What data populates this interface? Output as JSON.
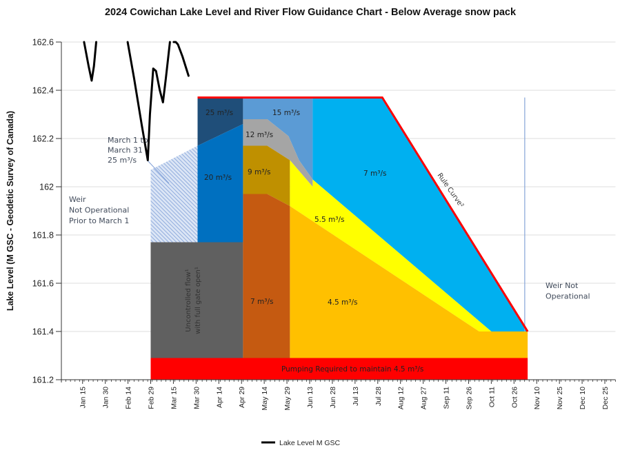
{
  "chart_data": {
    "type": "area",
    "title": "2024 Cowichan Lake Level and River Flow Guidance Chart - Below Average snow pack",
    "xlabel": "",
    "ylabel": "Lake Level (M GSC - Geodetic Survey of Canada)",
    "ylim": [
      161.2,
      162.6
    ],
    "yticks": [
      "162.6",
      "162.4",
      "162.2",
      "162",
      "161.8",
      "161.6",
      "161.4",
      "161.2"
    ],
    "ytick_values": [
      162.6,
      162.4,
      162.2,
      162.0,
      161.8,
      161.6,
      161.4,
      161.2
    ],
    "xlim_days": [
      0,
      366
    ],
    "x_unit": "day of year 2024 (Jan 1 = 0)",
    "xticks": [
      {
        "label": "Jan 15",
        "day": 14
      },
      {
        "label": "Jan 30",
        "day": 29
      },
      {
        "label": "Feb 14",
        "day": 44
      },
      {
        "label": "Feb 29",
        "day": 59
      },
      {
        "label": "Mar 15",
        "day": 74
      },
      {
        "label": "Mar 30",
        "day": 89
      },
      {
        "label": "Apr 14",
        "day": 104
      },
      {
        "label": "Apr 29",
        "day": 119
      },
      {
        "label": "May 14",
        "day": 134
      },
      {
        "label": "May 29",
        "day": 149
      },
      {
        "label": "Jun 13",
        "day": 164
      },
      {
        "label": "Jun 28",
        "day": 179
      },
      {
        "label": "Jul 13",
        "day": 194
      },
      {
        "label": "Jul 28",
        "day": 209
      },
      {
        "label": "Aug 12",
        "day": 224
      },
      {
        "label": "Aug 27",
        "day": 239
      },
      {
        "label": "Sep 11",
        "day": 254
      },
      {
        "label": "Sep 26",
        "day": 269
      },
      {
        "label": "Oct 11",
        "day": 284
      },
      {
        "label": "Oct 26",
        "day": 299
      },
      {
        "label": "Nov 10",
        "day": 314
      },
      {
        "label": "Nov 25",
        "day": 329
      },
      {
        "label": "Dec 10",
        "day": 344
      },
      {
        "label": "Dec 25",
        "day": 359
      }
    ],
    "grid": true,
    "legend": {
      "position": "bottom-center",
      "entries": [
        {
          "label": "Lake Level M GSC",
          "color": "#000000"
        }
      ]
    },
    "series": [
      {
        "name": "Lake Level M GSC",
        "type": "line",
        "color": "#000000",
        "segments": [
          [
            [
              15,
              162.6
            ],
            [
              18,
              162.5
            ],
            [
              20,
              162.44
            ],
            [
              21.5,
              162.5
            ],
            [
              23,
              162.6
            ]
          ],
          [
            [
              43.8,
              162.6
            ],
            [
              48,
              162.45
            ],
            [
              53,
              162.26
            ],
            [
              57.1,
              162.11
            ],
            [
              58.5,
              162.3
            ],
            [
              60.7,
              162.49
            ],
            [
              62.5,
              162.48
            ],
            [
              65,
              162.4
            ],
            [
              67.1,
              162.35
            ],
            [
              69,
              162.45
            ],
            [
              71.7,
              162.6
            ]
          ],
          [
            [
              74.2,
              162.6
            ],
            [
              75.6,
              162.6
            ],
            [
              77,
              162.59
            ],
            [
              80,
              162.54
            ],
            [
              82,
              162.5
            ],
            [
              84,
              162.46
            ]
          ]
        ]
      }
    ],
    "zones": [
      {
        "name": "pumping",
        "label": "Pumping Required to maintain 4.5 m³/s",
        "color": "#ff0000",
        "polygon": [
          [
            59,
            161.29
          ],
          [
            308,
            161.29
          ],
          [
            308,
            161.2
          ],
          [
            59,
            161.2
          ]
        ]
      },
      {
        "name": "uncontrolled",
        "label": "Uncontrolled flow with full gate open",
        "color": "#606060",
        "polygon": [
          [
            59,
            161.77
          ],
          [
            120,
            161.77
          ],
          [
            120,
            161.29
          ],
          [
            59,
            161.29
          ]
        ]
      },
      {
        "name": "march-hatch",
        "label": "March 1 to March 31 25 m³/s",
        "color": "#8fa9dc",
        "polygon": [
          [
            59,
            162.07
          ],
          [
            90,
            162.17
          ],
          [
            90,
            161.77
          ],
          [
            59,
            161.77
          ]
        ]
      },
      {
        "name": "flow-25",
        "label": "25 m³/s",
        "color": "#1f4e79",
        "polygon": [
          [
            90,
            162.37
          ],
          [
            120,
            162.37
          ],
          [
            120,
            162.26
          ],
          [
            90,
            162.17
          ]
        ]
      },
      {
        "name": "flow-20",
        "label": "20 m³/s",
        "color": "#0070c0",
        "polygon": [
          [
            90,
            162.17
          ],
          [
            120,
            162.26
          ],
          [
            120,
            161.77
          ],
          [
            90,
            161.77
          ]
        ]
      },
      {
        "name": "flow-15",
        "label": "15 m³/s",
        "color": "#5b9bd5",
        "polygon": [
          [
            120,
            162.37
          ],
          [
            166,
            162.37
          ],
          [
            166,
            162.03
          ],
          [
            157,
            162.11
          ],
          [
            150,
            162.21
          ],
          [
            136,
            162.28
          ],
          [
            120,
            162.28
          ]
        ]
      },
      {
        "name": "flow-12",
        "label": "12 m³/s",
        "color": "#a5a5a5",
        "polygon": [
          [
            120,
            162.28
          ],
          [
            136,
            162.28
          ],
          [
            150,
            162.21
          ],
          [
            157,
            162.11
          ],
          [
            166,
            162.03
          ],
          [
            166,
            162.0
          ],
          [
            151,
            162.11
          ],
          [
            136,
            162.17
          ],
          [
            120,
            162.17
          ]
        ]
      },
      {
        "name": "flow-9",
        "label": "9 m³/s",
        "color": "#bf9000",
        "polygon": [
          [
            120,
            162.17
          ],
          [
            136,
            162.17
          ],
          [
            151,
            162.11
          ],
          [
            151,
            161.92
          ],
          [
            136,
            161.97
          ],
          [
            120,
            161.97
          ]
        ]
      },
      {
        "name": "flow-7-spring",
        "label": "7 m³/s",
        "color": "#c55a11",
        "polygon": [
          [
            120,
            161.97
          ],
          [
            136,
            161.97
          ],
          [
            151,
            161.92
          ],
          [
            151,
            161.29
          ],
          [
            120,
            161.29
          ]
        ]
      },
      {
        "name": "flow-7-summer",
        "label": "7 m³/s",
        "color": "#00b0f0",
        "polygon": [
          [
            166,
            162.37
          ],
          [
            212,
            162.37
          ],
          [
            308,
            161.4
          ],
          [
            284,
            161.4
          ],
          [
            166,
            162.03
          ]
        ]
      },
      {
        "name": "flow-5.5",
        "label": "5.5 m³/s",
        "color": "#ffff00",
        "polygon": [
          [
            151,
            162.11
          ],
          [
            166,
            162.0
          ],
          [
            166,
            162.03
          ],
          [
            284,
            161.4
          ],
          [
            276,
            161.4
          ],
          [
            151,
            161.92
          ]
        ]
      },
      {
        "name": "flow-4.5",
        "label": "4.5 m³/s",
        "color": "#ffc000",
        "polygon": [
          [
            151,
            161.92
          ],
          [
            276,
            161.4
          ],
          [
            308,
            161.4
          ],
          [
            308,
            161.29
          ],
          [
            151,
            161.29
          ]
        ]
      }
    ],
    "rule_curve": {
      "label": "Rule Curve²",
      "color": "#ff0000",
      "points": [
        [
          90,
          162.37
        ],
        [
          212,
          162.37
        ],
        [
          308,
          161.4
        ]
      ]
    },
    "weir_line": {
      "day": 307,
      "color": "#8eaadb",
      "from": 161.4,
      "to": 162.37
    },
    "annotations": [
      {
        "text": [
          "Weir",
          "Not Operational",
          "Prior to March 1"
        ]
      },
      {
        "text": [
          "March 1 to",
          "March 31",
          "25 m³/s"
        ]
      },
      {
        "text": [
          "Weir Not",
          "Operational"
        ]
      },
      {
        "text": [
          "Uncontrolled flow¹",
          "with full gate open¹"
        ]
      }
    ]
  }
}
